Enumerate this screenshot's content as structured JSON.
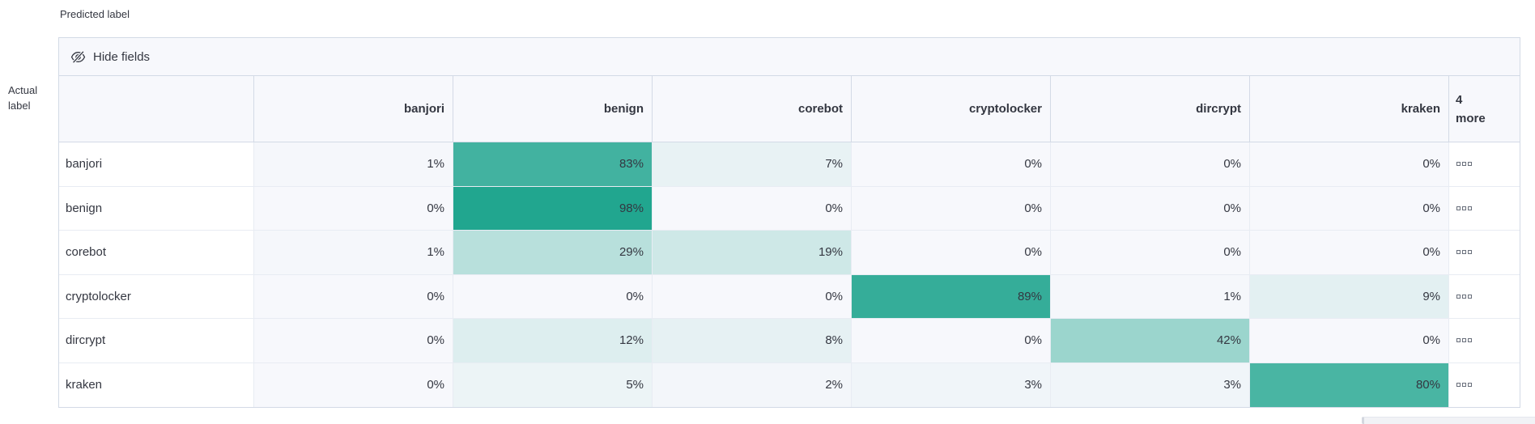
{
  "page": {
    "predicted_axis_label": "Predicted label",
    "actual_axis_lines": [
      "Actual",
      "label"
    ]
  },
  "toolbar": {
    "hide_fields_label": "Hide fields",
    "icon": "eye-closed-icon"
  },
  "chart_data": {
    "type": "heatmap",
    "columns": [
      "banjori",
      "benign",
      "corebot",
      "cryptolocker",
      "dircrypt",
      "kraken"
    ],
    "more_columns_lines": [
      "4",
      "more"
    ],
    "rows": [
      "banjori",
      "benign",
      "corebot",
      "cryptolocker",
      "dircrypt",
      "kraken"
    ],
    "values_percent": [
      [
        1,
        83,
        7,
        0,
        0,
        0
      ],
      [
        0,
        98,
        0,
        0,
        0,
        0
      ],
      [
        1,
        29,
        19,
        0,
        0,
        0
      ],
      [
        0,
        0,
        0,
        89,
        1,
        9
      ],
      [
        0,
        12,
        8,
        0,
        42,
        0
      ],
      [
        0,
        5,
        2,
        3,
        3,
        80
      ]
    ],
    "value_suffix": "%",
    "row_actions_icon": "boxes-horizontal-icon",
    "colorscale": {
      "min_color": "#f7f8fc",
      "max_color": "#1da48d",
      "domain": [
        0,
        100
      ]
    }
  },
  "colors": {
    "container_border": "#d3dae6",
    "header_grid_line": "#d3dae6",
    "grid_line": "#e8ecf3",
    "header_bg": "#f7f8fc",
    "text": "#343741"
  }
}
